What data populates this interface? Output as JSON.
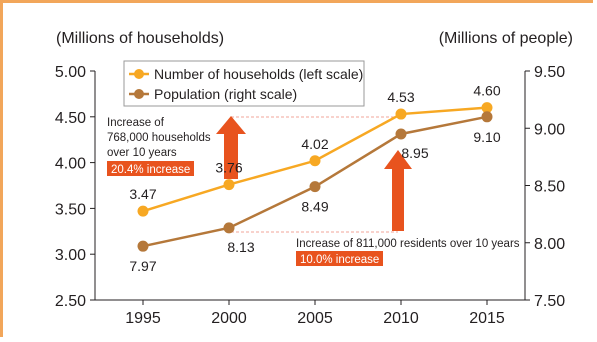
{
  "chart_data": {
    "type": "line",
    "categories": [
      "1995",
      "2000",
      "2005",
      "2010",
      "2015"
    ],
    "series": [
      {
        "name": "Number of households (left scale)",
        "axis": "left",
        "color": "#f7a823",
        "values": [
          3.47,
          3.76,
          4.02,
          4.53,
          4.6
        ]
      },
      {
        "name": "Population (right scale)",
        "axis": "right",
        "color": "#b5783a",
        "values": [
          7.97,
          8.13,
          8.49,
          8.95,
          9.1
        ]
      }
    ],
    "left_axis": {
      "label": "(Millions of households)",
      "ylim": [
        2.5,
        5.0
      ],
      "ticks": [
        "2.50",
        "3.00",
        "3.50",
        "4.00",
        "4.50",
        "5.00"
      ]
    },
    "right_axis": {
      "label": "(Millions of people)",
      "ylim": [
        7.5,
        9.5
      ],
      "ticks": [
        "7.50",
        "8.00",
        "8.50",
        "9.00",
        "9.50"
      ]
    },
    "legend_position": "top-center",
    "grid": false,
    "annotations": {
      "households": {
        "lines": [
          "Increase of",
          "768,000 households",
          "over 10 years"
        ],
        "badge": "20.4% increase"
      },
      "population": {
        "lines": [
          "Increase of 811,000 residents over 10 years"
        ],
        "badge": "10.0% increase"
      }
    }
  },
  "colors": {
    "frame": "#f2a65a",
    "arrow": "#e8531e",
    "badge": "#e8531e",
    "dashed_guide": "#f0a59a"
  }
}
